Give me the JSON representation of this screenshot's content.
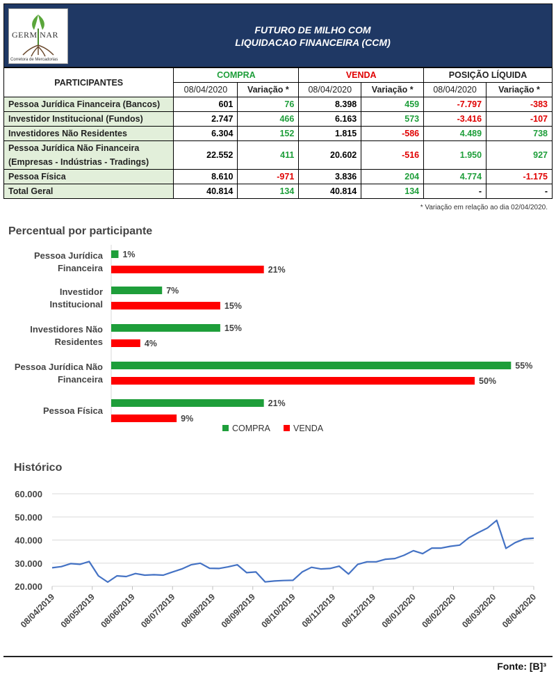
{
  "header": {
    "logo_text": "GERM NAR",
    "logo_sub": "Corretora de Mercadorias",
    "title_line1": "FUTURO DE MILHO COM",
    "title_line2": "LIQUIDACAO FINANCEIRA (CCM)"
  },
  "table": {
    "col_participantes": "PARTICIPANTES",
    "group_compra": "COMPRA",
    "group_venda": "VENDA",
    "group_posicao": "POSIÇÃO LÍQUIDA",
    "date": "08/04/2020",
    "variacao": "Variação *",
    "rows": [
      {
        "name": "Pessoa Jurídica Financeira (Bancos)",
        "compra": "601",
        "compra_var": "76",
        "venda": "8.398",
        "venda_var": "459",
        "pos": "-7.797",
        "pos_var": "-383"
      },
      {
        "name": "Investidor Institucional (Fundos)",
        "compra": "2.747",
        "compra_var": "466",
        "venda": "6.163",
        "venda_var": "573",
        "pos": "-3.416",
        "pos_var": "-107"
      },
      {
        "name": "Investidores Não Residentes",
        "compra": "6.304",
        "compra_var": "152",
        "venda": "1.815",
        "venda_var": "-586",
        "pos": "4.489",
        "pos_var": "738"
      },
      {
        "name": "Pessoa Jurídica Não Financeira",
        "name2": "(Empresas - Indústrias - Tradings)",
        "compra": "22.552",
        "compra_var": "411",
        "venda": "20.602",
        "venda_var": "-516",
        "pos": "1.950",
        "pos_var": "927"
      },
      {
        "name": "Pessoa Física",
        "compra": "8.610",
        "compra_var": "-971",
        "venda": "3.836",
        "venda_var": "204",
        "pos": "4.774",
        "pos_var": "-1.175"
      }
    ],
    "total": {
      "name": "Total Geral",
      "compra": "40.814",
      "compra_var": "134",
      "venda": "40.814",
      "venda_var": "134",
      "pos": "-",
      "pos_var": "-"
    },
    "note": "* Variação em relação ao dia 02/04/2020."
  },
  "colors": {
    "compra": "#1e9e3a",
    "venda": "#ff0000",
    "line": "#4472c4",
    "header_bg": "#1f3864",
    "label_bg": "#e2efda"
  },
  "bar_section_title": "Percentual por participante",
  "line_section_title": "Histórico",
  "source": "Fonte: [B]³",
  "chart_data": [
    {
      "type": "bar",
      "orientation": "horizontal",
      "categories": [
        [
          "Pessoa Jurídica",
          "Financeira"
        ],
        [
          "Investidor",
          "Institucional"
        ],
        [
          "Investidores Não",
          "Residentes"
        ],
        [
          "Pessoa Jurídica Não",
          "Financeira"
        ],
        [
          "Pessoa Física"
        ]
      ],
      "series": [
        {
          "name": "COMPRA",
          "values": [
            1,
            7,
            15,
            55,
            21
          ],
          "labels": [
            "1%",
            "7%",
            "15%",
            "55%",
            "21%"
          ]
        },
        {
          "name": "VENDA",
          "values": [
            21,
            15,
            4,
            50,
            9
          ],
          "labels": [
            "21%",
            "15%",
            "4%",
            "50%",
            "9%"
          ]
        }
      ],
      "legend": "bottom"
    },
    {
      "type": "line",
      "x_ticks": [
        "08/04/2019",
        "08/05/2019",
        "08/06/2019",
        "08/07/2019",
        "08/08/2019",
        "08/09/2019",
        "08/10/2019",
        "08/11/2019",
        "08/12/2019",
        "08/01/2020",
        "08/02/2020",
        "08/03/2020",
        "08/04/2020"
      ],
      "y_ticks": [
        "20.000",
        "30.000",
        "40.000",
        "50.000",
        "60.000"
      ],
      "ylim": [
        20000,
        60000
      ],
      "values": [
        28000,
        28500,
        29800,
        29500,
        30700,
        24500,
        21800,
        24500,
        24200,
        25500,
        24800,
        25000,
        24800,
        26200,
        27500,
        29300,
        30000,
        27800,
        27700,
        28400,
        29300,
        25900,
        26200,
        21900,
        22300,
        22500,
        22600,
        26200,
        28200,
        27500,
        27700,
        28700,
        25300,
        29500,
        30600,
        30600,
        31700,
        32000,
        33400,
        35400,
        34100,
        36500,
        36500,
        37300,
        37800,
        41000,
        43200,
        45200,
        48500,
        36400,
        38900,
        40500,
        40814
      ]
    }
  ]
}
